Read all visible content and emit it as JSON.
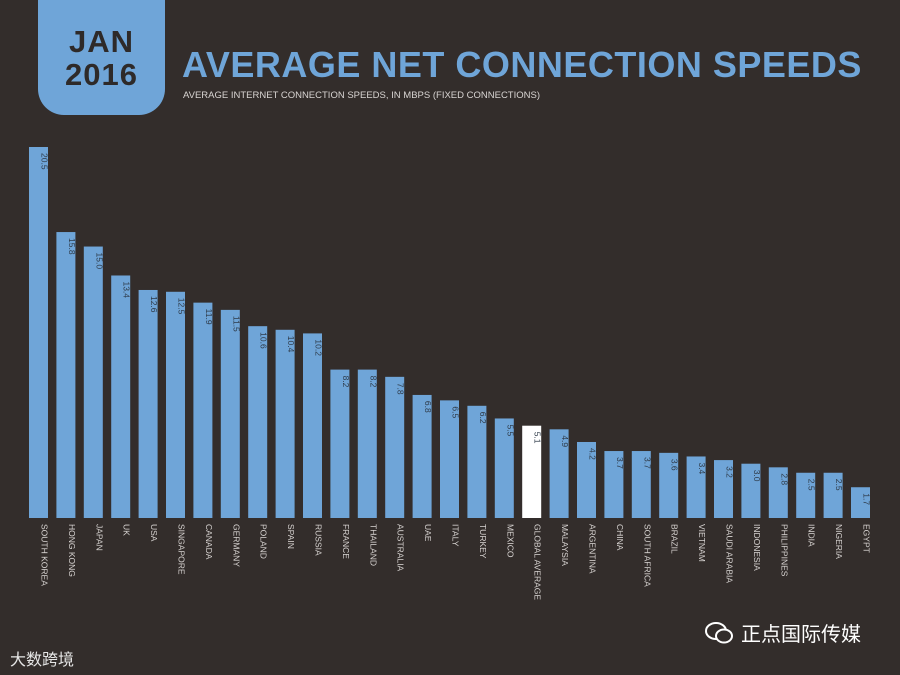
{
  "badge": {
    "month": "JAN",
    "year": "2016"
  },
  "title": "AVERAGE NET CONNECTION SPEEDS",
  "subtitle": "AVERAGE INTERNET CONNECTION SPEEDS, IN MBPS (FIXED CONNECTIONS)",
  "watermarks": {
    "left": "大数跨境",
    "right": "正点国际传媒"
  },
  "colors": {
    "background": "#332d2b",
    "bar": "#6fa5d8",
    "highlight_bar": "#ffffff",
    "label": "#d8d4d2"
  },
  "chart_data": {
    "type": "bar",
    "title": "AVERAGE NET CONNECTION SPEEDS",
    "ylabel": "Mbps",
    "ylim": [
      0,
      20.5
    ],
    "grid": false,
    "highlight": "GLOBAL AVERAGE",
    "categories": [
      "SOUTH KOREA",
      "HONG KONG",
      "JAPAN",
      "UK",
      "USA",
      "SINGAPORE",
      "CANADA",
      "GERMANY",
      "POLAND",
      "SPAIN",
      "RUSSIA",
      "FRANCE",
      "THAILAND",
      "AUSTRALIA",
      "UAE",
      "ITALY",
      "TURKEY",
      "MEXICO",
      "GLOBAL AVERAGE",
      "MALAYSIA",
      "ARGENTINA",
      "CHINA",
      "SOUTH AFRICA",
      "BRAZIL",
      "VIETNAM",
      "SAUDI ARABIA",
      "INDONESIA",
      "PHILIPPINES",
      "INDIA",
      "NIGERIA",
      "EGYPT"
    ],
    "values": [
      20.5,
      15.8,
      15.0,
      13.4,
      12.6,
      12.5,
      11.9,
      11.5,
      10.6,
      10.4,
      10.2,
      8.2,
      8.2,
      7.8,
      6.8,
      6.5,
      6.2,
      5.5,
      5.1,
      4.9,
      4.2,
      3.7,
      3.7,
      3.6,
      3.4,
      3.2,
      3.0,
      2.8,
      2.5,
      2.5,
      1.7
    ],
    "value_labels": [
      "20.5",
      "15.8",
      "15.0",
      "13.4",
      "12.6",
      "12.5",
      "11.9",
      "11.5",
      "10.6",
      "10.4",
      "10.2",
      "8.2",
      "8.2",
      "7.8",
      "6.8",
      "6.5",
      "6.2",
      "5.5",
      "5.1",
      "4.9",
      "4.2",
      "3.7",
      "3.7",
      "3.6",
      "3.4",
      "3.2",
      "3.0",
      "2.8",
      "2.5",
      "2.5",
      "1.7"
    ]
  }
}
